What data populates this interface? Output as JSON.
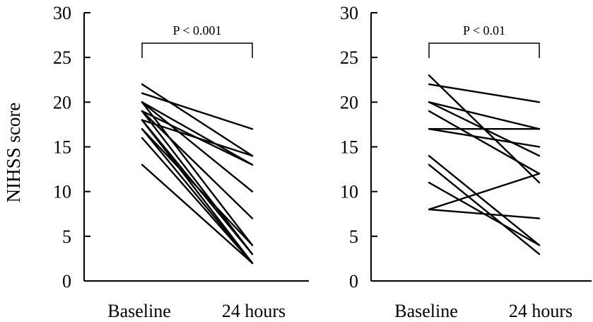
{
  "chart_data": [
    {
      "type": "line",
      "ylabel": "NIHSS score",
      "ylim": [
        0,
        30
      ],
      "yticks": [
        "0",
        "5",
        "10",
        "15",
        "20",
        "25",
        "30"
      ],
      "categories": [
        "Baseline",
        "24 hours"
      ],
      "annotation": "P < 0.001",
      "series": [
        {
          "values": [
            22,
            14
          ]
        },
        {
          "values": [
            21,
            17
          ]
        },
        {
          "values": [
            20,
            13
          ]
        },
        {
          "values": [
            20,
            10
          ]
        },
        {
          "values": [
            20,
            4
          ]
        },
        {
          "values": [
            19,
            13
          ]
        },
        {
          "values": [
            19,
            7
          ]
        },
        {
          "values": [
            19,
            3
          ]
        },
        {
          "values": [
            18,
            14
          ]
        },
        {
          "values": [
            18,
            2
          ]
        },
        {
          "values": [
            18,
            3
          ]
        },
        {
          "values": [
            17,
            4
          ]
        },
        {
          "values": [
            17,
            2
          ]
        },
        {
          "values": [
            16,
            2
          ]
        },
        {
          "values": [
            13,
            2
          ]
        }
      ]
    },
    {
      "type": "line",
      "ylabel": "",
      "ylim": [
        0,
        30
      ],
      "yticks": [
        "0",
        "5",
        "10",
        "15",
        "20",
        "25",
        "30"
      ],
      "categories": [
        "Baseline",
        "24 hours"
      ],
      "annotation": "P < 0.01",
      "series": [
        {
          "values": [
            23,
            11
          ]
        },
        {
          "values": [
            22,
            20
          ]
        },
        {
          "values": [
            20,
            17
          ]
        },
        {
          "values": [
            20,
            14
          ]
        },
        {
          "values": [
            19,
            12
          ]
        },
        {
          "values": [
            17,
            17
          ]
        },
        {
          "values": [
            17,
            15
          ]
        },
        {
          "values": [
            14,
            4
          ]
        },
        {
          "values": [
            13,
            3
          ]
        },
        {
          "values": [
            11,
            4
          ]
        },
        {
          "values": [
            8,
            12
          ]
        },
        {
          "values": [
            8,
            7
          ]
        }
      ]
    }
  ]
}
